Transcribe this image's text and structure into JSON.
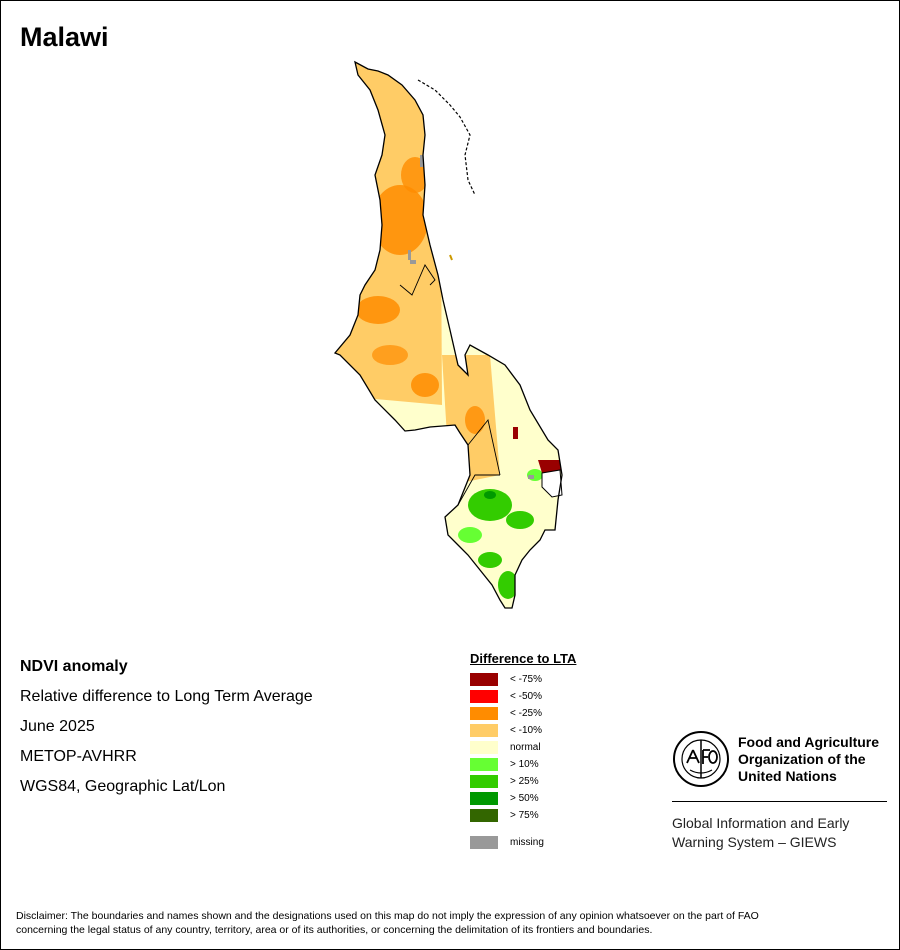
{
  "title": "Malawi",
  "info": {
    "product": "NDVI anomaly",
    "description": "Relative difference to Long Term Average",
    "period": "June 2025",
    "sensor": "METOP-AVHRR",
    "projection": "WGS84, Geographic Lat/Lon"
  },
  "legend": {
    "title": "Difference to LTA",
    "items": [
      {
        "label": "< -75%",
        "color": "#990000"
      },
      {
        "label": "< -50%",
        "color": "#ff0000"
      },
      {
        "label": "< -25%",
        "color": "#ff8c00"
      },
      {
        "label": "< -10%",
        "color": "#ffcc66"
      },
      {
        "label": "normal",
        "color": "#ffffcc"
      },
      {
        "label": "> 10%",
        "color": "#66ff33"
      },
      {
        "label": "> 25%",
        "color": "#33cc00"
      },
      {
        "label": "> 50%",
        "color": "#009900"
      },
      {
        "label": "> 75%",
        "color": "#336600"
      }
    ],
    "missing": {
      "label": "missing",
      "color": "#999999"
    }
  },
  "fao": {
    "logo_icon": "fao-emblem-icon",
    "name_line1": "Food and Agriculture",
    "name_line2": "Organization of the",
    "name_line3": "United Nations",
    "giews_line1": "Global Information and Early",
    "giews_line2": "Warning System – GIEWS"
  },
  "disclaimer_line1": "Disclaimer: The boundaries and names shown and the designations used on this map do not imply the expression of any opinion whatsoever on the part of FAO",
  "disclaimer_line2": "concerning the legal status of any country, territory, area or of its authorities, or concerning the delimitation of its frontiers and boundaries."
}
